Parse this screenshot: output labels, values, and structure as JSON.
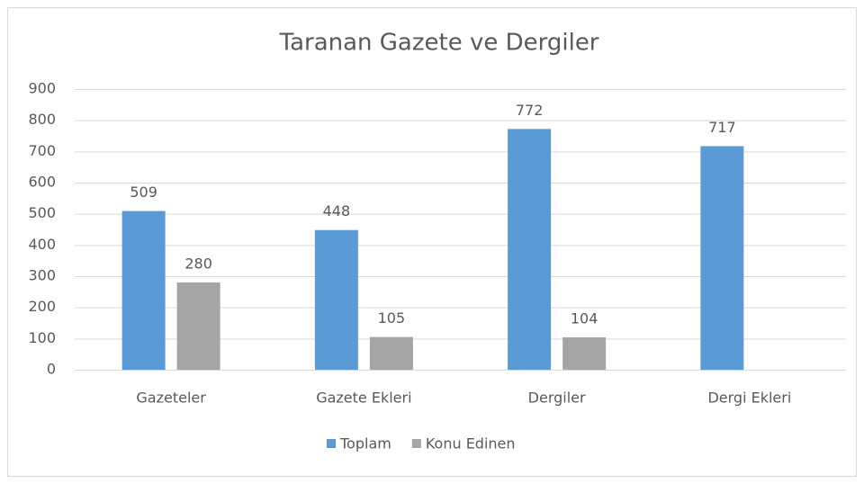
{
  "chart_data": {
    "type": "bar",
    "title": "Taranan Gazete ve Dergiler",
    "categories": [
      "Gazeteler",
      "Gazete Ekleri",
      "Dergiler",
      "Dergi Ekleri"
    ],
    "series": [
      {
        "name": "Toplam",
        "color": "#5b9bd5",
        "values": [
          509,
          448,
          772,
          717
        ]
      },
      {
        "name": "Konu Edinen",
        "color": "#a5a5a5",
        "values": [
          280,
          105,
          104,
          null
        ]
      }
    ],
    "ylim": [
      0,
      900
    ],
    "yticks": [
      0,
      100,
      200,
      300,
      400,
      500,
      600,
      700,
      800,
      900
    ],
    "grid": true,
    "legend": "bottom"
  }
}
